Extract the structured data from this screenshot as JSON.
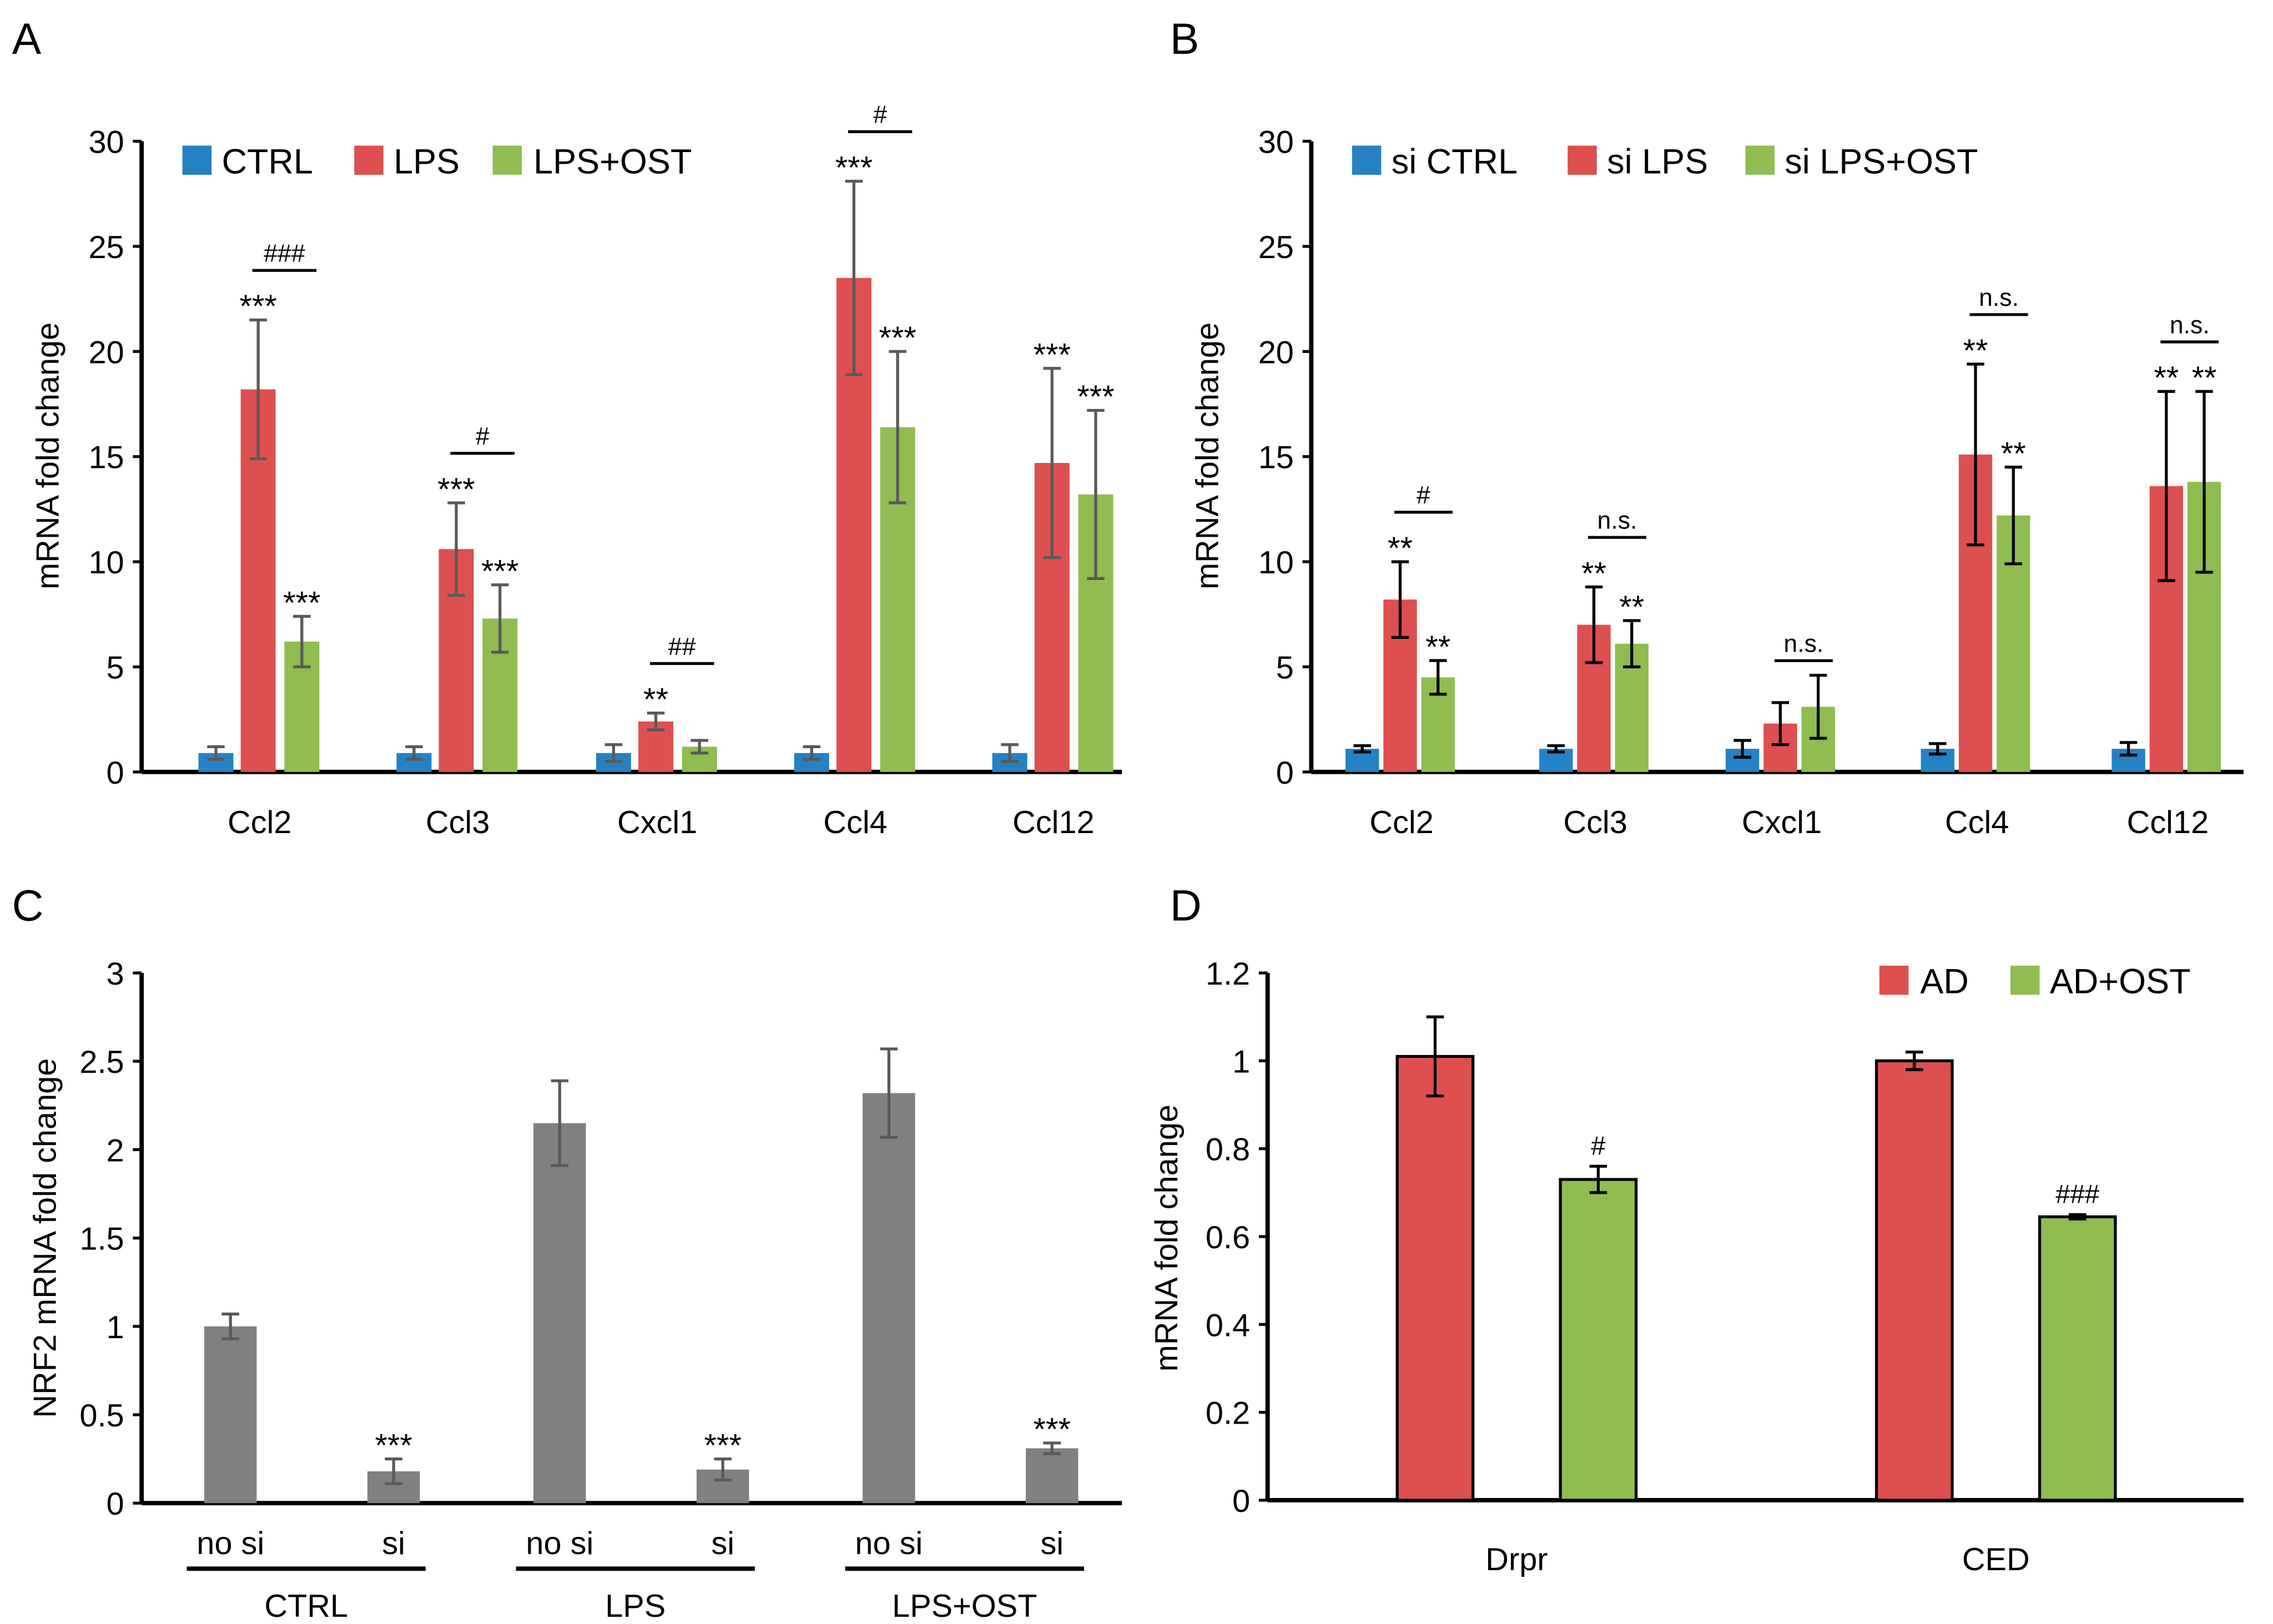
{
  "panel_labels": [
    "A",
    "B",
    "C",
    "D"
  ],
  "chart_data": [
    {
      "id": "A",
      "type": "bar",
      "ylabel": "mRNA fold change",
      "ylim": [
        0,
        30
      ],
      "yticks": [
        0,
        5,
        10,
        15,
        20,
        25,
        30
      ],
      "categories": [
        "Ccl2",
        "Ccl3",
        "Cxcl1",
        "Ccl4",
        "Ccl12"
      ],
      "legend_position": "top-left",
      "series": [
        {
          "name": "CTRL",
          "color": "#2481c3",
          "values": [
            0.9,
            0.9,
            0.9,
            0.9,
            0.9
          ],
          "errors": [
            0.3,
            0.3,
            0.4,
            0.3,
            0.4
          ],
          "stars": [
            "",
            "",
            "",
            "",
            ""
          ]
        },
        {
          "name": "LPS",
          "color": "#de4f4f",
          "values": [
            18.2,
            10.6,
            2.4,
            23.5,
            14.7
          ],
          "errors": [
            3.3,
            2.2,
            0.4,
            4.6,
            4.5
          ],
          "stars": [
            "***",
            "***",
            "**",
            "***",
            "***"
          ]
        },
        {
          "name": "LPS+OST",
          "color": "#8fbd50",
          "values": [
            6.2,
            7.3,
            1.2,
            16.4,
            13.2
          ],
          "errors": [
            1.2,
            1.6,
            0.3,
            3.6,
            4.0
          ],
          "stars": [
            "***",
            "***",
            "",
            "***",
            "***"
          ]
        }
      ],
      "comparisons": [
        "###",
        "#",
        "##",
        "#",
        ""
      ]
    },
    {
      "id": "B",
      "type": "bar",
      "ylabel": "mRNA fold change",
      "ylim": [
        0,
        30
      ],
      "yticks": [
        0,
        5,
        10,
        15,
        20,
        25,
        30
      ],
      "categories": [
        "Ccl2",
        "Ccl3",
        "Cxcl1",
        "Ccl4",
        "Ccl12"
      ],
      "legend_position": "top-left",
      "series": [
        {
          "name": "si CTRL",
          "color": "#2481c3",
          "values": [
            1.1,
            1.1,
            1.1,
            1.1,
            1.1
          ],
          "errors": [
            0.15,
            0.15,
            0.4,
            0.25,
            0.3
          ],
          "stars": [
            "",
            "",
            "",
            "",
            ""
          ]
        },
        {
          "name": "si LPS",
          "color": "#de4f4f",
          "values": [
            8.2,
            7.0,
            2.3,
            15.1,
            13.6
          ],
          "errors": [
            1.8,
            1.8,
            1.0,
            4.3,
            4.5
          ],
          "stars": [
            "**",
            "**",
            "",
            "**",
            "**"
          ]
        },
        {
          "name": "si LPS+OST",
          "color": "#8fbd50",
          "values": [
            4.5,
            6.1,
            3.1,
            12.2,
            13.8
          ],
          "errors": [
            0.8,
            1.1,
            1.5,
            2.3,
            4.3
          ],
          "stars": [
            "**",
            "**",
            "",
            "**",
            "**"
          ]
        }
      ],
      "comparisons": [
        "#",
        "n.s.",
        "n.s.",
        "n.s.",
        "n.s."
      ]
    },
    {
      "id": "C",
      "type": "bar",
      "ylabel": "NRF2 mRNA fold change",
      "ylim": [
        0,
        3
      ],
      "yticks": [
        0,
        0.5,
        1,
        1.5,
        2,
        2.5,
        3
      ],
      "categories": [
        "no si",
        "si",
        "no si",
        "si",
        "no si",
        "si"
      ],
      "groups": [
        "CTRL",
        "LPS",
        "LPS+OST"
      ],
      "series": [
        {
          "name": "NRF2",
          "color": "#808080",
          "values": [
            1.0,
            0.18,
            2.15,
            0.19,
            2.32,
            0.31
          ],
          "errors": [
            0.07,
            0.07,
            0.24,
            0.06,
            0.25,
            0.03
          ],
          "stars": [
            "",
            "***",
            "",
            "***",
            "",
            "***"
          ]
        }
      ]
    },
    {
      "id": "D",
      "type": "bar",
      "ylabel": "mRNA fold change",
      "ylim": [
        0,
        1.2
      ],
      "yticks": [
        0,
        0.2,
        0.4,
        0.6,
        0.8,
        1,
        1.2
      ],
      "categories": [
        "Drpr",
        "CED"
      ],
      "legend_position": "top-right",
      "series": [
        {
          "name": "AD",
          "color": "#de4f4f",
          "values": [
            1.01,
            1.0
          ],
          "errors": [
            0.09,
            0.02
          ],
          "stars": [
            "",
            ""
          ]
        },
        {
          "name": "AD+OST",
          "color": "#8fbd50",
          "values": [
            0.73,
            0.645
          ],
          "errors": [
            0.03,
            0.005
          ],
          "stars": [
            "#",
            "###"
          ]
        }
      ]
    }
  ]
}
